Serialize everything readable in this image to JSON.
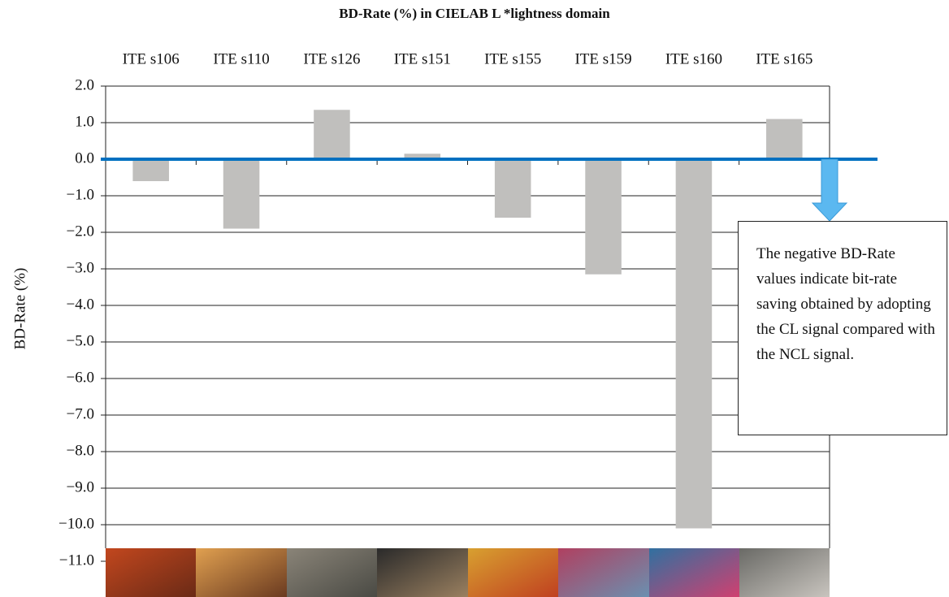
{
  "chart_data": {
    "type": "bar",
    "title": "BD-Rate (%) in CIELAB L *lightness domain",
    "y_label": "BD-Rate (%)",
    "categories": [
      "ITE s106",
      "ITE s110",
      "ITE s126",
      "ITE s151",
      "ITE s155",
      "ITE s159",
      "ITE s160",
      "ITE s165"
    ],
    "values": [
      -0.6,
      -1.9,
      1.35,
      0.15,
      -1.6,
      -3.15,
      -10.1,
      1.1
    ],
    "color": "#c0bfbd",
    "zero_line_color": "#0070c0",
    "ylim": [
      -11,
      2
    ],
    "yticks": [
      {
        "value": 2,
        "label": "2.0"
      },
      {
        "value": 1,
        "label": "1.0"
      },
      {
        "value": 0,
        "label": "0.0"
      },
      {
        "value": -1,
        "label": "−1.0"
      },
      {
        "value": -2,
        "label": "−2.0"
      },
      {
        "value": -3,
        "label": "−3.0"
      },
      {
        "value": -4,
        "label": "−4.0"
      },
      {
        "value": -5,
        "label": "−5.0"
      },
      {
        "value": -6,
        "label": "−6.0"
      },
      {
        "value": -7,
        "label": "−7.0"
      },
      {
        "value": -8,
        "label": "−8.0"
      },
      {
        "value": -9,
        "label": "−9.0"
      },
      {
        "value": -10,
        "label": "−10.0"
      },
      {
        "value": -11,
        "label": "−11.0"
      }
    ],
    "grid": true,
    "annotation": "The negative BD-Rate values indicate bit-rate saving obtained by adopting the CL signal compared with the NCL signal."
  }
}
